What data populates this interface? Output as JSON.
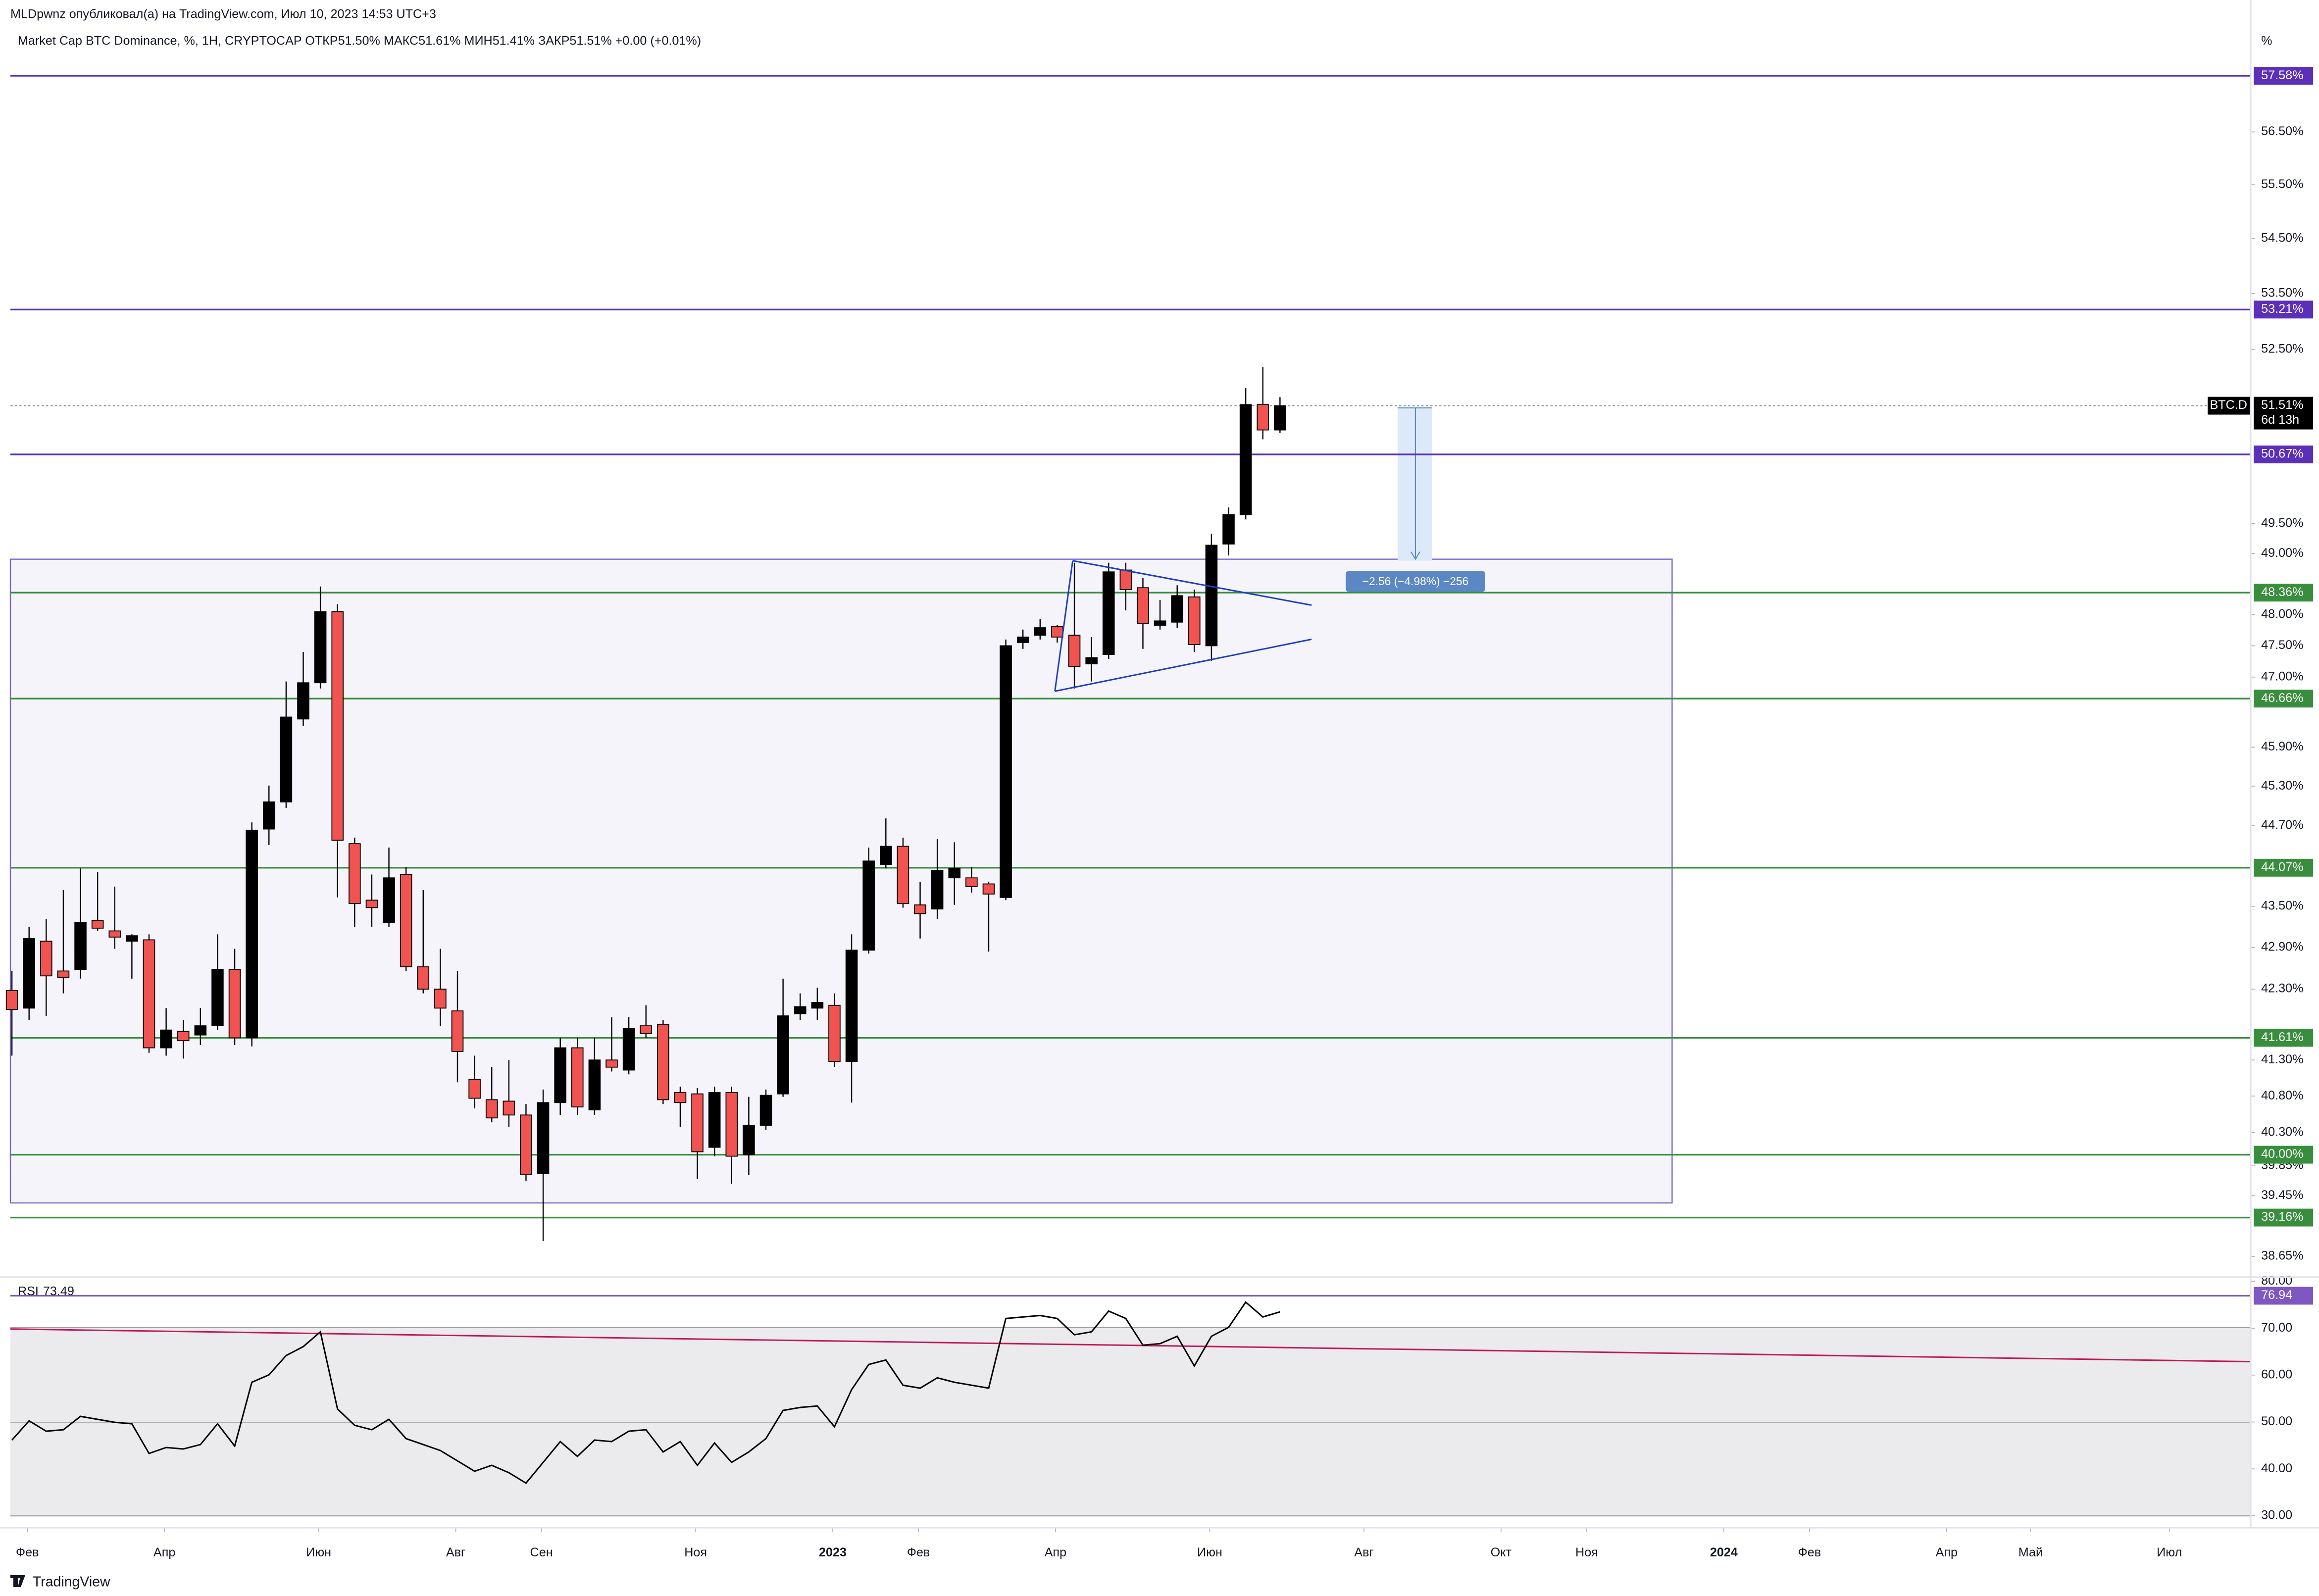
{
  "chart_data": {
    "type": "candlestick",
    "header": "MLDpwnz опубликовал(а) на TradingView.com, Июл 10, 2023 14:53 UTC+3",
    "title": "Market Cap BTC Dominance, %, 1H, CRYPTOCAP  ОТКР51.50%  МАКС51.61%  МИН51.41%  ЗАКР51.51%  +0.00 (+0.01%)",
    "y_unit": "%",
    "watermark": "TradingView",
    "measure_label": "−2.56 (−4.98%) −256",
    "up_color": "#000000",
    "down_color": "#f05350",
    "log": true,
    "x": [
      0,
      1,
      2,
      3,
      4,
      5,
      6,
      7,
      8,
      9,
      10,
      11,
      12,
      13,
      14,
      15,
      16,
      17,
      18,
      19,
      20,
      21,
      22,
      23,
      24,
      25,
      26,
      27,
      28,
      29,
      30,
      31,
      32,
      33,
      34,
      35,
      36,
      37,
      38,
      39,
      40,
      41,
      42,
      43,
      44,
      45,
      46,
      47,
      48,
      49,
      50,
      51,
      52,
      53,
      54,
      55,
      56,
      57,
      58,
      59,
      60,
      61,
      62,
      63,
      64,
      65,
      66,
      67,
      68,
      69,
      70,
      71,
      72,
      73,
      74
    ],
    "open": [
      42.28,
      42.03,
      42.99,
      42.56,
      42.58,
      43.29,
      43.14,
      42.99,
      43.01,
      41.47,
      41.7,
      41.65,
      41.78,
      42.58,
      41.61,
      44.65,
      45.06,
      46.34,
      46.91,
      48.05,
      44.43,
      43.59,
      43.26,
      43.97,
      42.62,
      42.3,
      41.99,
      41.03,
      40.75,
      40.73,
      40.54,
      39.75,
      40.71,
      41.47,
      40.61,
      41.3,
      41.16,
      41.78,
      41.8,
      40.85,
      40.83,
      40.1,
      40.85,
      40.0,
      40.4,
      40.83,
      41.95,
      42.03,
      42.07,
      41.28,
      42.86,
      44.12,
      44.39,
      43.52,
      43.46,
      43.92,
      43.92,
      43.83,
      43.63,
      47.55,
      47.67,
      47.81,
      47.67,
      47.21,
      47.36,
      48.73,
      48.44,
      47.83,
      47.88,
      48.29,
      47.5,
      49.16,
      49.65,
      51.53,
      51.09
    ],
    "high": [
      42.56,
      43.2,
      43.31,
      43.74,
      44.06,
      44.01,
      43.79,
      43.09,
      43.09,
      42.03,
      41.86,
      42.03,
      43.09,
      42.88,
      44.75,
      45.31,
      46.93,
      47.4,
      48.46,
      48.17,
      44.52,
      43.97,
      44.37,
      44.08,
      43.74,
      42.88,
      42.56,
      41.36,
      41.2,
      41.3,
      40.69,
      40.89,
      41.61,
      41.61,
      41.61,
      41.9,
      41.9,
      42.07,
      41.86,
      40.93,
      40.91,
      40.93,
      40.93,
      40.79,
      40.89,
      42.45,
      42.24,
      42.32,
      42.24,
      43.09,
      44.37,
      44.81,
      44.52,
      43.86,
      44.5,
      44.45,
      44.08,
      43.86,
      47.6,
      47.76,
      47.93,
      47.83,
      48.85,
      47.64,
      48.85,
      48.85,
      48.6,
      48.24,
      48.48,
      48.41,
      49.33,
      49.77,
      51.82,
      52.19,
      51.66
    ],
    "low": [
      41.36,
      41.86,
      41.92,
      42.24,
      42.45,
      43.14,
      42.88,
      42.45,
      41.4,
      41.36,
      41.32,
      41.51,
      41.72,
      41.51,
      41.49,
      44.41,
      44.97,
      46.23,
      46.82,
      43.63,
      43.2,
      43.2,
      43.2,
      42.56,
      42.24,
      41.78,
      40.99,
      40.63,
      40.44,
      40.38,
      39.65,
      38.85,
      40.54,
      40.54,
      40.54,
      41.14,
      41.1,
      41.61,
      40.69,
      40.38,
      39.67,
      39.98,
      39.61,
      39.73,
      40.34,
      40.79,
      41.86,
      41.86,
      41.2,
      40.71,
      42.81,
      44.06,
      43.48,
      43.03,
      43.31,
      43.52,
      43.7,
      42.84,
      43.59,
      47.45,
      47.6,
      47.55,
      46.82,
      46.93,
      47.29,
      48.07,
      47.45,
      47.76,
      47.79,
      47.4,
      47.26,
      48.97,
      49.57,
      50.93,
      51.04
    ],
    "close": [
      42.01,
      43.03,
      42.49,
      42.47,
      43.26,
      43.18,
      43.05,
      43.07,
      41.47,
      41.72,
      41.57,
      41.78,
      42.58,
      41.61,
      44.63,
      45.06,
      46.37,
      46.91,
      48.05,
      44.48,
      43.54,
      43.48,
      43.92,
      42.62,
      42.3,
      42.03,
      41.42,
      40.77,
      40.5,
      40.54,
      39.73,
      40.71,
      41.47,
      40.65,
      41.3,
      41.2,
      41.74,
      41.67,
      40.75,
      40.71,
      40.04,
      40.85,
      39.98,
      40.4,
      40.81,
      41.92,
      42.05,
      42.11,
      41.28,
      42.86,
      44.17,
      44.39,
      43.54,
      43.39,
      44.03,
      44.06,
      43.79,
      43.68,
      47.5,
      47.64,
      47.79,
      47.64,
      47.17,
      47.31,
      48.7,
      48.41,
      47.86,
      47.9,
      48.31,
      47.52,
      49.14,
      49.65,
      51.53,
      51.09,
      51.51
    ],
    "xlim": [
      -0.09,
      130.65
    ],
    "ylim": [
      38.4,
      58.66
    ],
    "xticks": [
      {
        "value": 0.9,
        "label": "Фев"
      },
      {
        "value": 8.9,
        "label": "Апр"
      },
      {
        "value": 17.9,
        "label": "Июн"
      },
      {
        "value": 25.9,
        "label": "Авг"
      },
      {
        "value": 30.9,
        "label": "Сен"
      },
      {
        "value": 39.9,
        "label": "Ноя"
      },
      {
        "value": 47.9,
        "label": "2023"
      },
      {
        "value": 52.9,
        "label": "Фев"
      },
      {
        "value": 60.9,
        "label": "Апр"
      },
      {
        "value": 69.9,
        "label": "Июн"
      },
      {
        "value": 78.9,
        "label": "Авг"
      },
      {
        "value": 86.9,
        "label": "Окт"
      },
      {
        "value": 91.9,
        "label": "Ноя"
      },
      {
        "value": 99.9,
        "label": "2024"
      },
      {
        "value": 104.9,
        "label": "Фев"
      },
      {
        "value": 112.9,
        "label": "Апр"
      },
      {
        "value": 117.8,
        "label": "Май"
      },
      {
        "value": 125.9,
        "label": "Июл"
      }
    ],
    "yticks": [
      {
        "value": 56.5,
        "label": "56.50%"
      },
      {
        "value": 55.5,
        "label": "55.50%"
      },
      {
        "value": 54.5,
        "label": "54.50%"
      },
      {
        "value": 53.5,
        "label": "53.50%"
      },
      {
        "value": 52.5,
        "label": "52.50%"
      },
      {
        "value": 49.5,
        "label": "49.50%"
      },
      {
        "value": 49.0,
        "label": "49.00%"
      },
      {
        "value": 48.0,
        "label": "48.00%"
      },
      {
        "value": 47.5,
        "label": "47.50%"
      },
      {
        "value": 47.0,
        "label": "47.00%"
      },
      {
        "value": 45.9,
        "label": "45.90%"
      },
      {
        "value": 45.3,
        "label": "45.30%"
      },
      {
        "value": 44.7,
        "label": "44.70%"
      },
      {
        "value": 43.5,
        "label": "43.50%"
      },
      {
        "value": 42.9,
        "label": "42.90%"
      },
      {
        "value": 42.3,
        "label": "42.30%"
      },
      {
        "value": 41.3,
        "label": "41.30%"
      },
      {
        "value": 40.8,
        "label": "40.80%"
      },
      {
        "value": 40.3,
        "label": "40.30%"
      },
      {
        "value": 39.85,
        "label": "39.85%"
      },
      {
        "value": 39.45,
        "label": "39.45%"
      },
      {
        "value": 38.65,
        "label": "38.65%"
      }
    ],
    "levels": [
      {
        "value": 57.58,
        "label": "57.58%",
        "color": "#5b2fb8"
      },
      {
        "value": 53.21,
        "label": "53.21%",
        "color": "#5b2fb8"
      },
      {
        "value": 50.67,
        "label": "50.67%",
        "color": "#5b2fb8"
      },
      {
        "value": 48.36,
        "label": "48.36%",
        "color": "#388e3c"
      },
      {
        "value": 46.66,
        "label": "46.66%",
        "color": "#388e3c"
      },
      {
        "value": 44.07,
        "label": "44.07%",
        "color": "#388e3c"
      },
      {
        "value": 41.61,
        "label": "41.61%",
        "color": "#388e3c"
      },
      {
        "value": 40.0,
        "label": "40.00%",
        "color": "#388e3c"
      },
      {
        "value": 39.16,
        "label": "39.16%",
        "color": "#388e3c"
      }
    ],
    "last_price": {
      "name": "BTC.D",
      "value": 51.51,
      "label": "51.51%",
      "countdown": "6d 13h"
    },
    "rsi": {
      "type": "line",
      "name": "RSI",
      "color": "#000000",
      "values": [
        46.14,
        50.25,
        48.04,
        48.35,
        51.2,
        50.57,
        49.94,
        49.62,
        43.29,
        44.56,
        44.24,
        45.19,
        49.62,
        44.87,
        58.48,
        60.06,
        64.18,
        66.08,
        69.24,
        52.78,
        49.3,
        48.35,
        50.57,
        46.46,
        45.19,
        43.92,
        41.71,
        39.49,
        40.76,
        39.18,
        36.96,
        41.39,
        45.82,
        42.66,
        46.14,
        45.82,
        48.04,
        48.35,
        43.61,
        45.82,
        40.76,
        45.51,
        41.39,
        43.61,
        46.46,
        52.47,
        53.1,
        53.42,
        48.99,
        56.9,
        62.28,
        63.23,
        57.85,
        57.22,
        59.43,
        58.48,
        57.85,
        57.22,
        72.09,
        72.41,
        72.72,
        72.09,
        68.61,
        69.24,
        73.67,
        72.09,
        66.39,
        66.71,
        68.29,
        61.96,
        68.29,
        70.19,
        75.57,
        72.41,
        73.49
      ],
      "ylim": [
        28.7,
        80.6
      ],
      "yticks": [
        {
          "value": 80,
          "label": "80.00"
        },
        {
          "value": 70,
          "label": "70.00"
        },
        {
          "value": 60,
          "label": "60.00"
        },
        {
          "value": 50,
          "label": "50.00"
        },
        {
          "value": 40,
          "label": "40.00"
        },
        {
          "value": 30,
          "label": "30.00"
        }
      ],
      "level": {
        "value": 76.94,
        "color": "#7e57c2"
      }
    }
  }
}
